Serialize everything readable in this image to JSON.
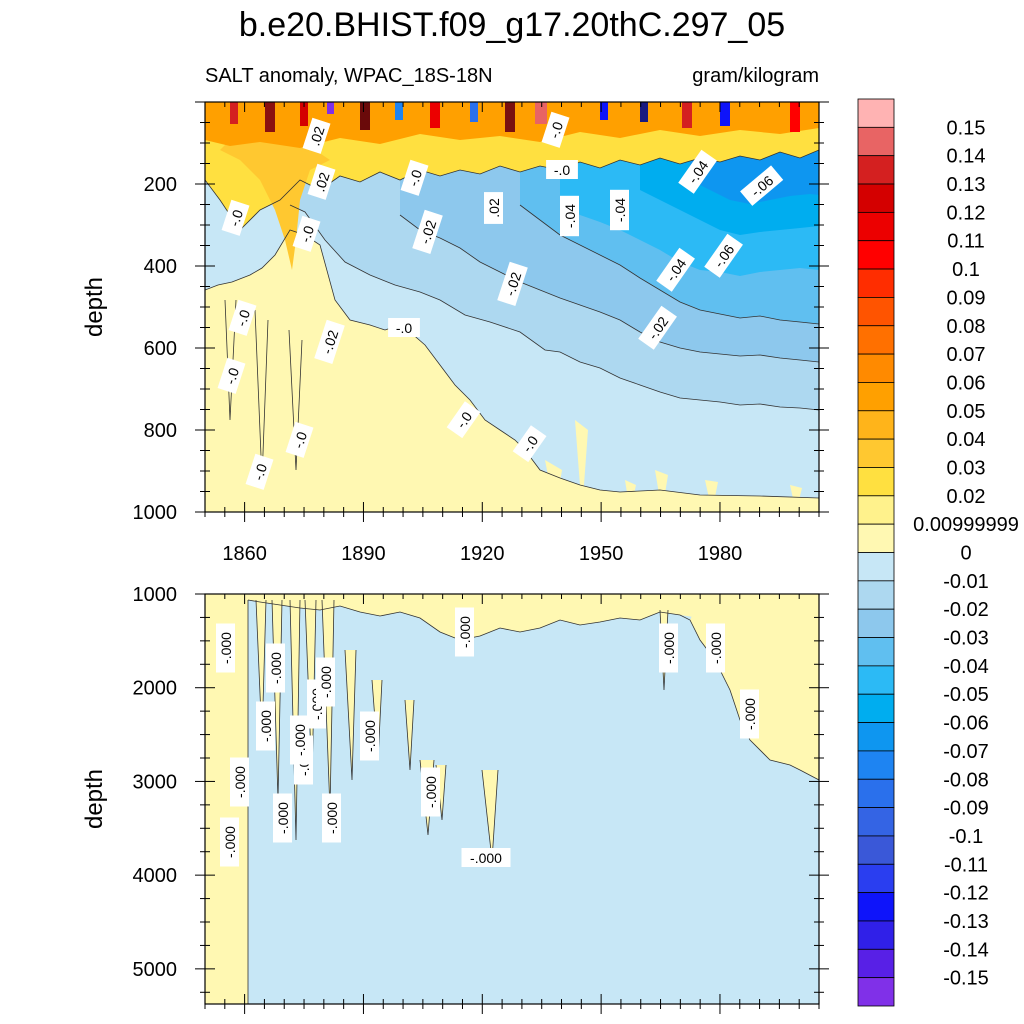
{
  "chart_data": {
    "type": "heatmap",
    "subtype": "filled-contour depth-time section",
    "title": "b.e20.BHIST.f09_g17.20thC.297_05",
    "subtitle_left": "SALT anomaly, WPAC_18S-18N",
    "subtitle_right": "gram/kilogram",
    "xlim": [
      1850,
      2005
    ],
    "x_tick_labels": [
      "1860",
      "1890",
      "1920",
      "1950",
      "1980"
    ],
    "colorbar": {
      "levels": [
        "0.15",
        "0.14",
        "0.13",
        "0.12",
        "0.11",
        "0.1",
        "0.09",
        "0.08",
        "0.07",
        "0.06",
        "0.05",
        "0.04",
        "0.03",
        "0.02",
        "0.00999999",
        "0",
        "-0.01",
        "-0.02",
        "-0.03",
        "-0.04",
        "-0.05",
        "-0.06",
        "-0.07",
        "-0.08",
        "-0.09",
        "-0.1",
        "-0.11",
        "-0.12",
        "-0.13",
        "-0.14",
        "-0.15"
      ],
      "colors": [
        "#ffb3b3",
        "#e86464",
        "#d42020",
        "#d40000",
        "#ec0000",
        "#ff0000",
        "#ff2d00",
        "#ff5400",
        "#ff7000",
        "#ff8a00",
        "#ffa000",
        "#ffb41a",
        "#ffc830",
        "#ffe040",
        "#fff28c",
        "#fff8b2",
        "#c7e7f6",
        "#add8f0",
        "#8dc8ed",
        "#60bff0",
        "#2cbaf5",
        "#00adef",
        "#0e96f0",
        "#1e84f2",
        "#2a70ec",
        "#3464e4",
        "#3a58d8",
        "#2a3ef0",
        "#0e14fa",
        "#3020e8",
        "#5820e6",
        "#8030e8"
      ]
    },
    "panels": [
      {
        "name": "upper (0-1000 m)",
        "ylabel": "depth",
        "ylim": [
          0,
          1000
        ],
        "y_tick_labels": [
          "200",
          "400",
          "600",
          "800",
          "1000"
        ],
        "contour_labels": [
          ".02",
          ".02",
          "-.0",
          "-.0",
          "-.02",
          "-.02",
          "-.04",
          "-.04",
          "-.04",
          "-.06",
          "-.0",
          "-.02",
          ".02",
          "-.04",
          "-.06",
          "-.0",
          "-.0",
          "-.02",
          "-.0",
          "-.0",
          "-.0",
          "-.0",
          "-.0",
          "-.0",
          "-.0"
        ]
      },
      {
        "name": "lower (1000-5375 m)",
        "ylabel": "depth",
        "ylim": [
          1000,
          5375
        ],
        "y_tick_labels": [
          "1000",
          "2000",
          "3000",
          "4000",
          "5000"
        ],
        "contour_labels": [
          "-.000",
          "-.000",
          "-.000",
          "-.000",
          "-.000",
          "-.000",
          "-.000",
          "-.000",
          "-.000",
          "-.000",
          "-.000",
          "-.000",
          "-.000",
          "-.000",
          "-.000",
          "-.000",
          "-.000",
          "-.000"
        ]
      }
    ]
  }
}
